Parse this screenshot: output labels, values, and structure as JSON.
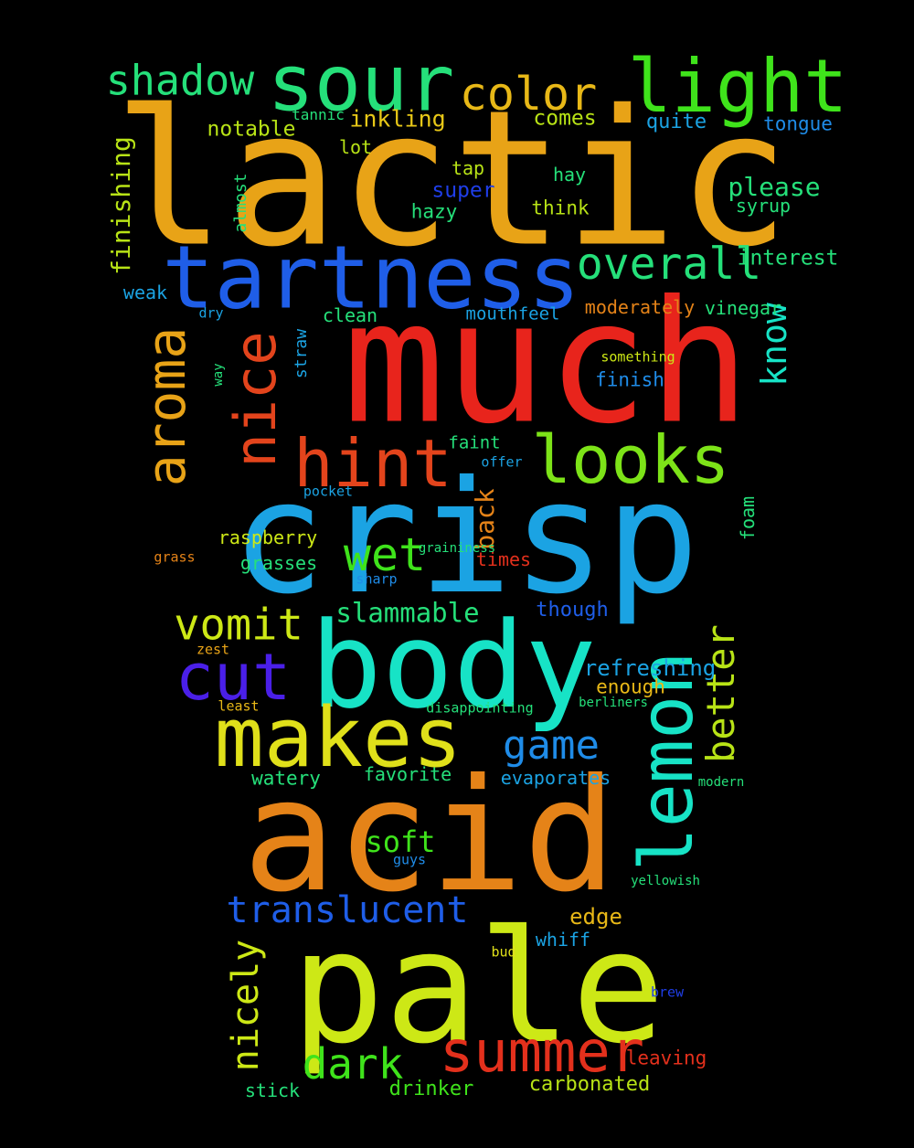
{
  "words": [
    {
      "text": "lactic",
      "color": "#e8a317"
    },
    {
      "text": "much",
      "color": "#e8241c"
    },
    {
      "text": "crisp",
      "color": "#1ba3e3"
    },
    {
      "text": "acid",
      "color": "#e58318"
    },
    {
      "text": "pale",
      "color": "#cde816"
    },
    {
      "text": "body",
      "color": "#17e3c6"
    },
    {
      "text": "sour",
      "color": "#25e07a"
    },
    {
      "text": "tartness",
      "color": "#1f5ee8"
    },
    {
      "text": "light",
      "color": "#3fe31b"
    },
    {
      "text": "makes",
      "color": "#e0e01a"
    },
    {
      "text": "looks",
      "color": "#7de318"
    },
    {
      "text": "hint",
      "color": "#e3441c"
    },
    {
      "text": "lemon",
      "color": "#17e3c6"
    },
    {
      "text": "summer",
      "color": "#e3301c"
    },
    {
      "text": "nice",
      "color": "#e3441c"
    },
    {
      "text": "aroma",
      "color": "#e8a317"
    },
    {
      "text": "overall",
      "color": "#25e07a"
    },
    {
      "text": "color",
      "color": "#e8b817"
    },
    {
      "text": "shadow",
      "color": "#25e07a"
    },
    {
      "text": "cut",
      "color": "#4a1fe8"
    },
    {
      "text": "wet",
      "color": "#3fe31b"
    },
    {
      "text": "vomit",
      "color": "#cde816"
    },
    {
      "text": "game",
      "color": "#1f8ce8"
    },
    {
      "text": "better",
      "color": "#b8e316"
    },
    {
      "text": "know",
      "color": "#17e3c6"
    },
    {
      "text": "translucent",
      "color": "#1f5ee8"
    },
    {
      "text": "dark",
      "color": "#3fe31b"
    },
    {
      "text": "nicely",
      "color": "#cde816"
    },
    {
      "text": "finishing",
      "color": "#b8e316"
    },
    {
      "text": "soft",
      "color": "#3fe31b"
    },
    {
      "text": "slammable",
      "color": "#25e07a"
    },
    {
      "text": "back",
      "color": "#e58318"
    },
    {
      "text": "inkling",
      "color": "#e8c817"
    },
    {
      "text": "please",
      "color": "#25e07a"
    },
    {
      "text": "notable",
      "color": "#b8e316"
    },
    {
      "text": "comes",
      "color": "#b8e316"
    },
    {
      "text": "quite",
      "color": "#1ba3e3"
    },
    {
      "text": "tongue",
      "color": "#1f8ce8"
    },
    {
      "text": "tannic",
      "color": "#25e07a"
    },
    {
      "text": "lot",
      "color": "#b8e316"
    },
    {
      "text": "tap",
      "color": "#b8e316"
    },
    {
      "text": "hay",
      "color": "#25e07a"
    },
    {
      "text": "super",
      "color": "#1f3ee8"
    },
    {
      "text": "hazy",
      "color": "#25e07a"
    },
    {
      "text": "think",
      "color": "#b8e316"
    },
    {
      "text": "syrup",
      "color": "#25e07a"
    },
    {
      "text": "almost",
      "color": "#25e07a"
    },
    {
      "text": "interest",
      "color": "#25e07a"
    },
    {
      "text": "weak",
      "color": "#1ba3e3"
    },
    {
      "text": "dry",
      "color": "#1ba3e3"
    },
    {
      "text": "clean",
      "color": "#25e07a"
    },
    {
      "text": "straw",
      "color": "#1ba3e3"
    },
    {
      "text": "mouthfeel",
      "color": "#1ba3e3"
    },
    {
      "text": "moderately",
      "color": "#e58318"
    },
    {
      "text": "vinegar",
      "color": "#25e07a"
    },
    {
      "text": "way",
      "color": "#25e07a"
    },
    {
      "text": "something",
      "color": "#cde816"
    },
    {
      "text": "finish",
      "color": "#1f8ce8"
    },
    {
      "text": "faint",
      "color": "#25e07a"
    },
    {
      "text": "offer",
      "color": "#1ba3e3"
    },
    {
      "text": "pocket",
      "color": "#1ba3e3"
    },
    {
      "text": "foam",
      "color": "#25e07a"
    },
    {
      "text": "raspberry",
      "color": "#cde816"
    },
    {
      "text": "grasses",
      "color": "#25e07a"
    },
    {
      "text": "times",
      "color": "#e3301c"
    },
    {
      "text": "grass",
      "color": "#e58318"
    },
    {
      "text": "sharp",
      "color": "#1f8ce8"
    },
    {
      "text": "though",
      "color": "#1f5ee8"
    },
    {
      "text": "zest",
      "color": "#e8a317"
    },
    {
      "text": "refreshing",
      "color": "#1ba3e3"
    },
    {
      "text": "enough",
      "color": "#e8b817"
    },
    {
      "text": "least",
      "color": "#e8b817"
    },
    {
      "text": "disappointing",
      "color": "#25e07a"
    },
    {
      "text": "berliners",
      "color": "#25e07a"
    },
    {
      "text": "watery",
      "color": "#25e07a"
    },
    {
      "text": "favorite",
      "color": "#25e07a"
    },
    {
      "text": "evaporates",
      "color": "#1ba3e3"
    },
    {
      "text": "modern",
      "color": "#25e07a"
    },
    {
      "text": "guys",
      "color": "#1f8ce8"
    },
    {
      "text": "yellowish",
      "color": "#25e07a"
    },
    {
      "text": "edge",
      "color": "#e8b817"
    },
    {
      "text": "whiff",
      "color": "#1ba3e3"
    },
    {
      "text": "bud",
      "color": "#e0e01a"
    },
    {
      "text": "brew",
      "color": "#1f3ee8"
    },
    {
      "text": "leaving",
      "color": "#e3301c"
    },
    {
      "text": "stick",
      "color": "#25e07a"
    },
    {
      "text": "drinker",
      "color": "#3fe31b"
    },
    {
      "text": "carbonated",
      "color": "#b8e316"
    },
    {
      "text": "graininess",
      "color": "#25e07a"
    }
  ]
}
